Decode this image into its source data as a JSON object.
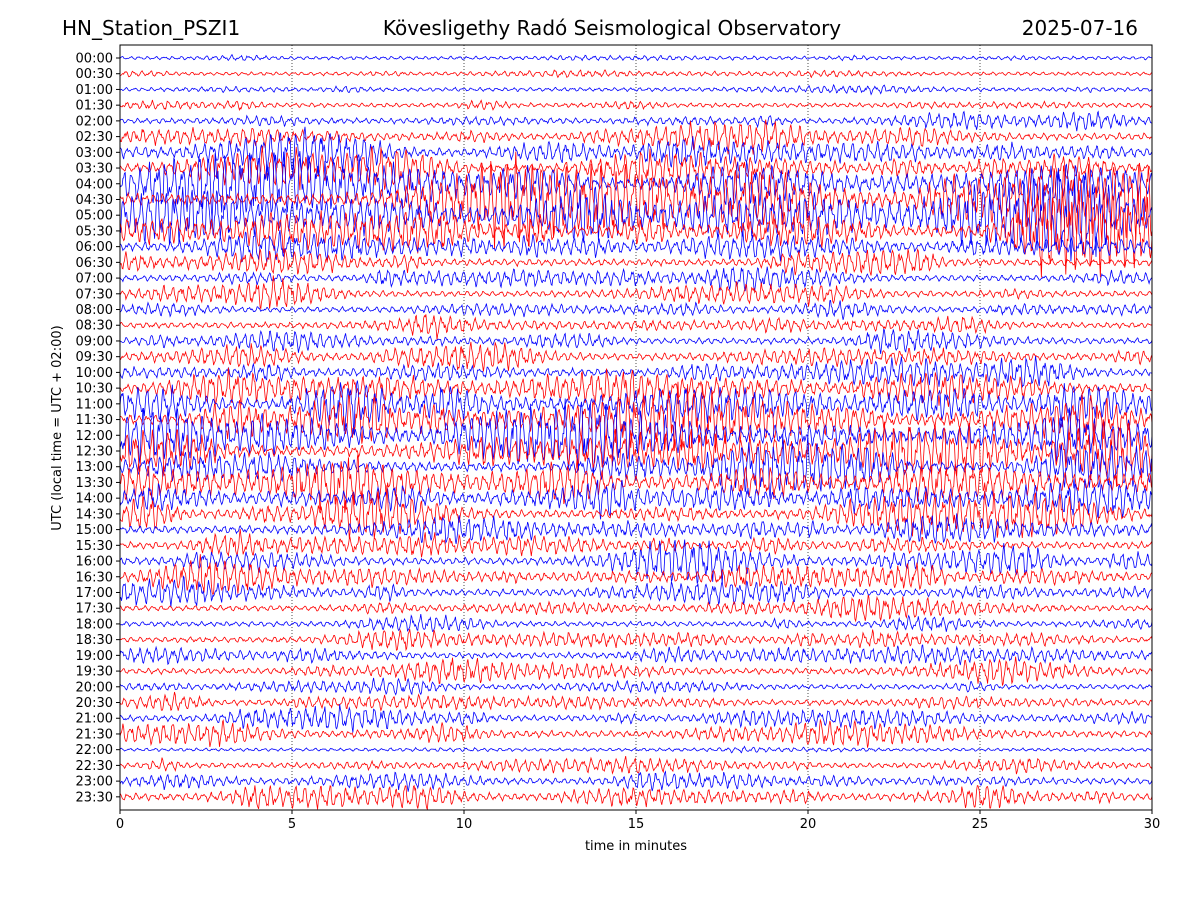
{
  "header": {
    "left": "HN_Station_PSZI1",
    "center": "Kövesligethy Radó Seismological Observatory",
    "right": "2025-07-16"
  },
  "chart_data": {
    "type": "line",
    "subtype": "helicorder",
    "xlabel": "time in minutes",
    "ylabel": "UTC (local time = UTC + 02:00)",
    "xlim": [
      0,
      30
    ],
    "xticks": [
      0,
      5,
      10,
      15,
      20,
      25,
      30
    ],
    "vertical_dotted_gridlines_at": [
      5,
      10,
      15,
      20,
      25
    ],
    "row_interval_minutes": 30,
    "rows": [
      "00:00",
      "00:30",
      "01:00",
      "01:30",
      "02:00",
      "02:30",
      "03:00",
      "03:30",
      "04:00",
      "04:30",
      "05:00",
      "05:30",
      "06:00",
      "06:30",
      "07:00",
      "07:30",
      "08:00",
      "08:30",
      "09:00",
      "09:30",
      "10:00",
      "10:30",
      "11:00",
      "11:30",
      "12:00",
      "12:30",
      "13:00",
      "13:30",
      "14:00",
      "14:30",
      "15:00",
      "15:30",
      "16:00",
      "16:30",
      "17:00",
      "17:30",
      "18:00",
      "18:30",
      "19:00",
      "19:30",
      "20:00",
      "20:30",
      "21:00",
      "21:30",
      "22:00",
      "22:30",
      "23:00",
      "23:30"
    ],
    "trace_colors": [
      "#0000ff",
      "#ff0000"
    ],
    "relative_activity": [
      0.15,
      0.18,
      0.2,
      0.3,
      0.45,
      0.7,
      0.85,
      0.95,
      1.3,
      1.5,
      1.5,
      1.3,
      0.9,
      0.7,
      0.6,
      0.55,
      0.5,
      0.55,
      0.6,
      0.65,
      0.8,
      1.0,
      1.2,
      1.4,
      1.4,
      1.3,
      1.1,
      1.2,
      1.1,
      1.0,
      0.8,
      0.7,
      0.75,
      0.8,
      0.7,
      0.5,
      0.4,
      0.5,
      0.55,
      0.55,
      0.4,
      0.5,
      0.6,
      0.65,
      0.1,
      0.45,
      0.6,
      0.75
    ]
  }
}
